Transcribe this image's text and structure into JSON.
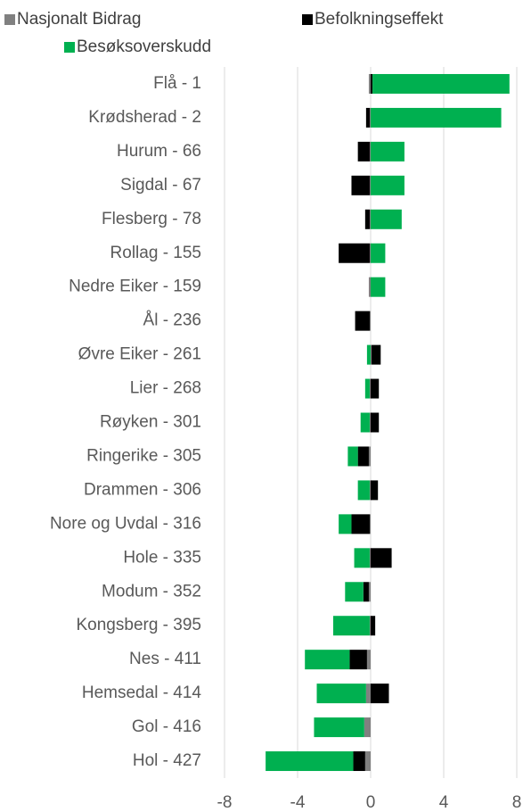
{
  "chart_data": {
    "type": "bar",
    "orientation": "horizontal",
    "stacked": true,
    "categories": [
      "Flå - 1",
      "Krødsherad - 2",
      "Hurum - 66",
      "Sigdal - 67",
      "Flesberg - 78",
      "Rollag - 155",
      "Nedre Eiker - 159",
      "Ål - 236",
      "Øvre Eiker - 261",
      "Lier - 268",
      "Røyken - 301",
      "Ringerike - 305",
      "Drammen - 306",
      "Nore og Uvdal - 316",
      "Hole - 335",
      "Modum - 352",
      "Kongsberg - 395",
      "Nes - 411",
      "Hemsedal - 414",
      "Gol - 416",
      "Hol - 427"
    ],
    "series": [
      {
        "name": "Nasjonalt Bidrag",
        "color": "#808080",
        "values": [
          -0.1,
          -0.05,
          -0.05,
          -0.05,
          -0.05,
          -0.05,
          -0.1,
          -0.05,
          0.05,
          -0.05,
          -0.05,
          -0.1,
          -0.05,
          -0.05,
          -0.05,
          -0.1,
          -0.05,
          -0.2,
          -0.25,
          -0.35,
          -0.3
        ]
      },
      {
        "name": "Befolkningseffekt",
        "color": "#000000",
        "values": [
          0.1,
          -0.2,
          -0.65,
          -1.0,
          -0.25,
          -1.7,
          0,
          -0.8,
          0.5,
          0.45,
          0.45,
          -0.6,
          0.4,
          -1.0,
          1.15,
          -0.3,
          0.25,
          -0.95,
          1.0,
          0,
          -0.65
        ]
      },
      {
        "name": "Besøksoverskudd",
        "color": "#00b050",
        "values": [
          7.5,
          7.15,
          1.85,
          1.85,
          1.7,
          0.8,
          0.8,
          0,
          -0.2,
          -0.25,
          -0.5,
          -0.55,
          -0.65,
          -0.7,
          -0.85,
          -1.0,
          -2.0,
          -2.45,
          -2.7,
          -2.75,
          -4.8
        ]
      }
    ],
    "xlim": [
      -8,
      8
    ],
    "xticks": [
      -8,
      -4,
      0,
      4,
      8
    ],
    "grid": true,
    "legend": "top"
  }
}
